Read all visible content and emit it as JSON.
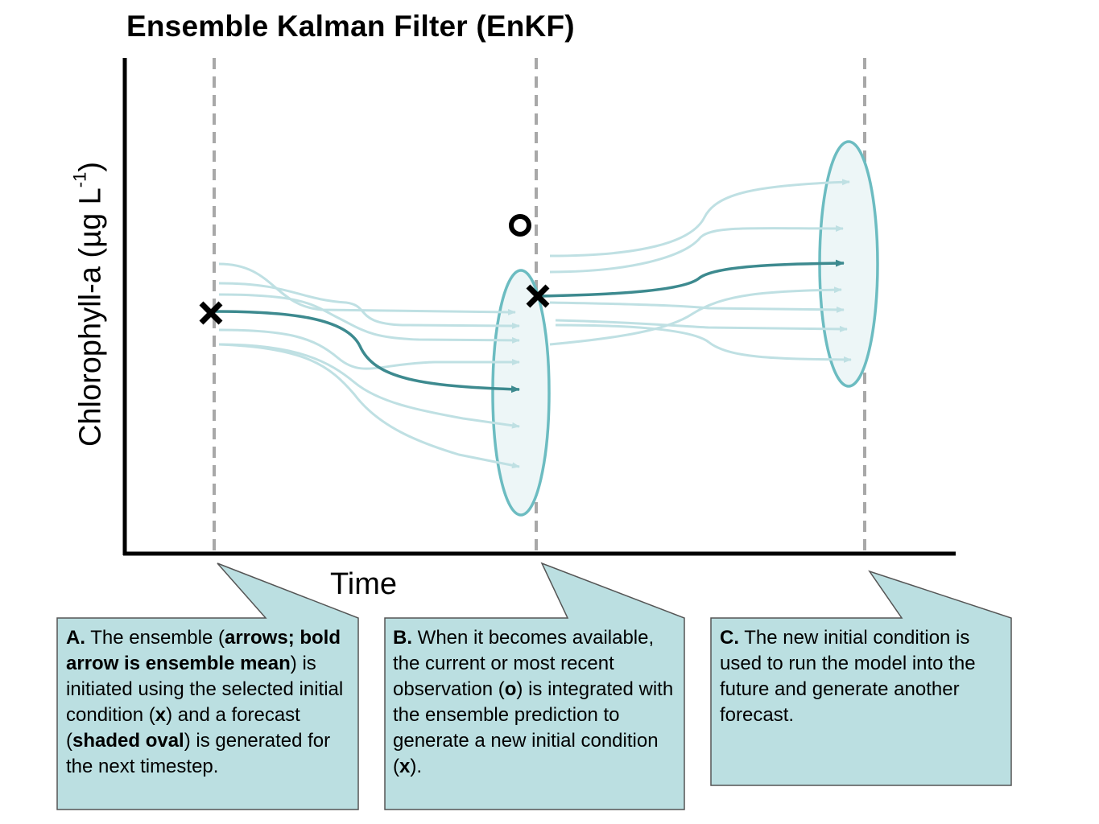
{
  "title": "Ensemble Kalman Filter (EnKF)",
  "y_axis_label": {
    "main": "Chlorophyll-a (µg L",
    "sup": "-1",
    "close": ")"
  },
  "x_axis_label": "Time",
  "markers": {
    "initial_condition": "x",
    "observation": "o"
  },
  "colors": {
    "mean_arrow": "#3d8a8f",
    "member_arrow": "#bfe0e3",
    "oval_stroke": "#6cbcc1",
    "oval_fill": "#edf6f7",
    "dashed_line": "#a8a8a8",
    "callout_fill": "#bbdfe1",
    "callout_stroke": "#555555"
  },
  "callouts": [
    {
      "id": "A",
      "parts": [
        {
          "t": "A.",
          "b": true
        },
        {
          "t": " The ensemble ("
        },
        {
          "t": "arrows; bold arrow is ensemble mean",
          "b": true
        },
        {
          "t": ") is initiated using the selected initial condition ("
        },
        {
          "t": "x",
          "b": true
        },
        {
          "t": ") and a forecast ("
        },
        {
          "t": "shaded oval",
          "b": true
        },
        {
          "t": ") is generated for the next timestep."
        }
      ]
    },
    {
      "id": "B",
      "parts": [
        {
          "t": "B.",
          "b": true
        },
        {
          "t": " When it becomes available, the current or most recent observation ("
        },
        {
          "t": "o",
          "b": true
        },
        {
          "t": ") is integrated with the ensemble prediction to generate a new initial condition ("
        },
        {
          "t": "x",
          "b": true
        },
        {
          "t": ")."
        }
      ]
    },
    {
      "id": "C",
      "parts": [
        {
          "t": "C.",
          "b": true
        },
        {
          "t": " The new initial condition is used to run the model into the future and generate another forecast."
        }
      ]
    }
  ]
}
